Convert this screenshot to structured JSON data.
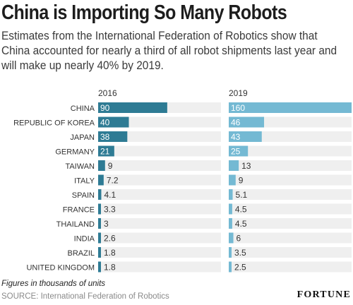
{
  "header": {
    "title": "China is Importing So Many Robots",
    "subtitle": "Estimates from the International Federation of Robotics show that China accounted for nearly a third of all robot shipments last year and will make up nearly 40% by 2019."
  },
  "chart_data": {
    "type": "bar",
    "orientation": "horizontal",
    "categories": [
      "CHINA",
      "REPUBLIC OF KOREA",
      "JAPAN",
      "GERMANY",
      "TAIWAN",
      "ITALY",
      "SPAIN",
      "FRANCE",
      "THAILAND",
      "INDIA",
      "BRAZIL",
      "UNITED KINGDOM"
    ],
    "series": [
      {
        "name": "2016",
        "values": [
          90,
          40,
          38,
          21,
          9,
          7.2,
          4.1,
          3.3,
          3,
          2.6,
          1.8,
          1.8
        ],
        "labels": [
          "90",
          "40",
          "38",
          "21",
          "9",
          "7.2",
          "4.1",
          "3.3",
          "3",
          "2.6",
          "1.8",
          "1.8"
        ],
        "color": "#2e7b94"
      },
      {
        "name": "2019",
        "values": [
          160,
          46,
          43,
          25,
          13,
          9,
          5.1,
          4.5,
          4.5,
          6,
          3.5,
          2.5
        ],
        "labels": [
          "160",
          "46",
          "43",
          "25",
          "13",
          "9",
          "5.1",
          "4.5",
          "4.5",
          "6",
          "3.5",
          "2.5"
        ],
        "color": "#74b9d3"
      }
    ],
    "track_color": "#efefef",
    "grid": false,
    "legend": "column headers"
  },
  "footer": {
    "note": "Figures in thousands of units",
    "source": "SOURCE: International Federation of Robotics",
    "brand": "FORTUNE"
  }
}
